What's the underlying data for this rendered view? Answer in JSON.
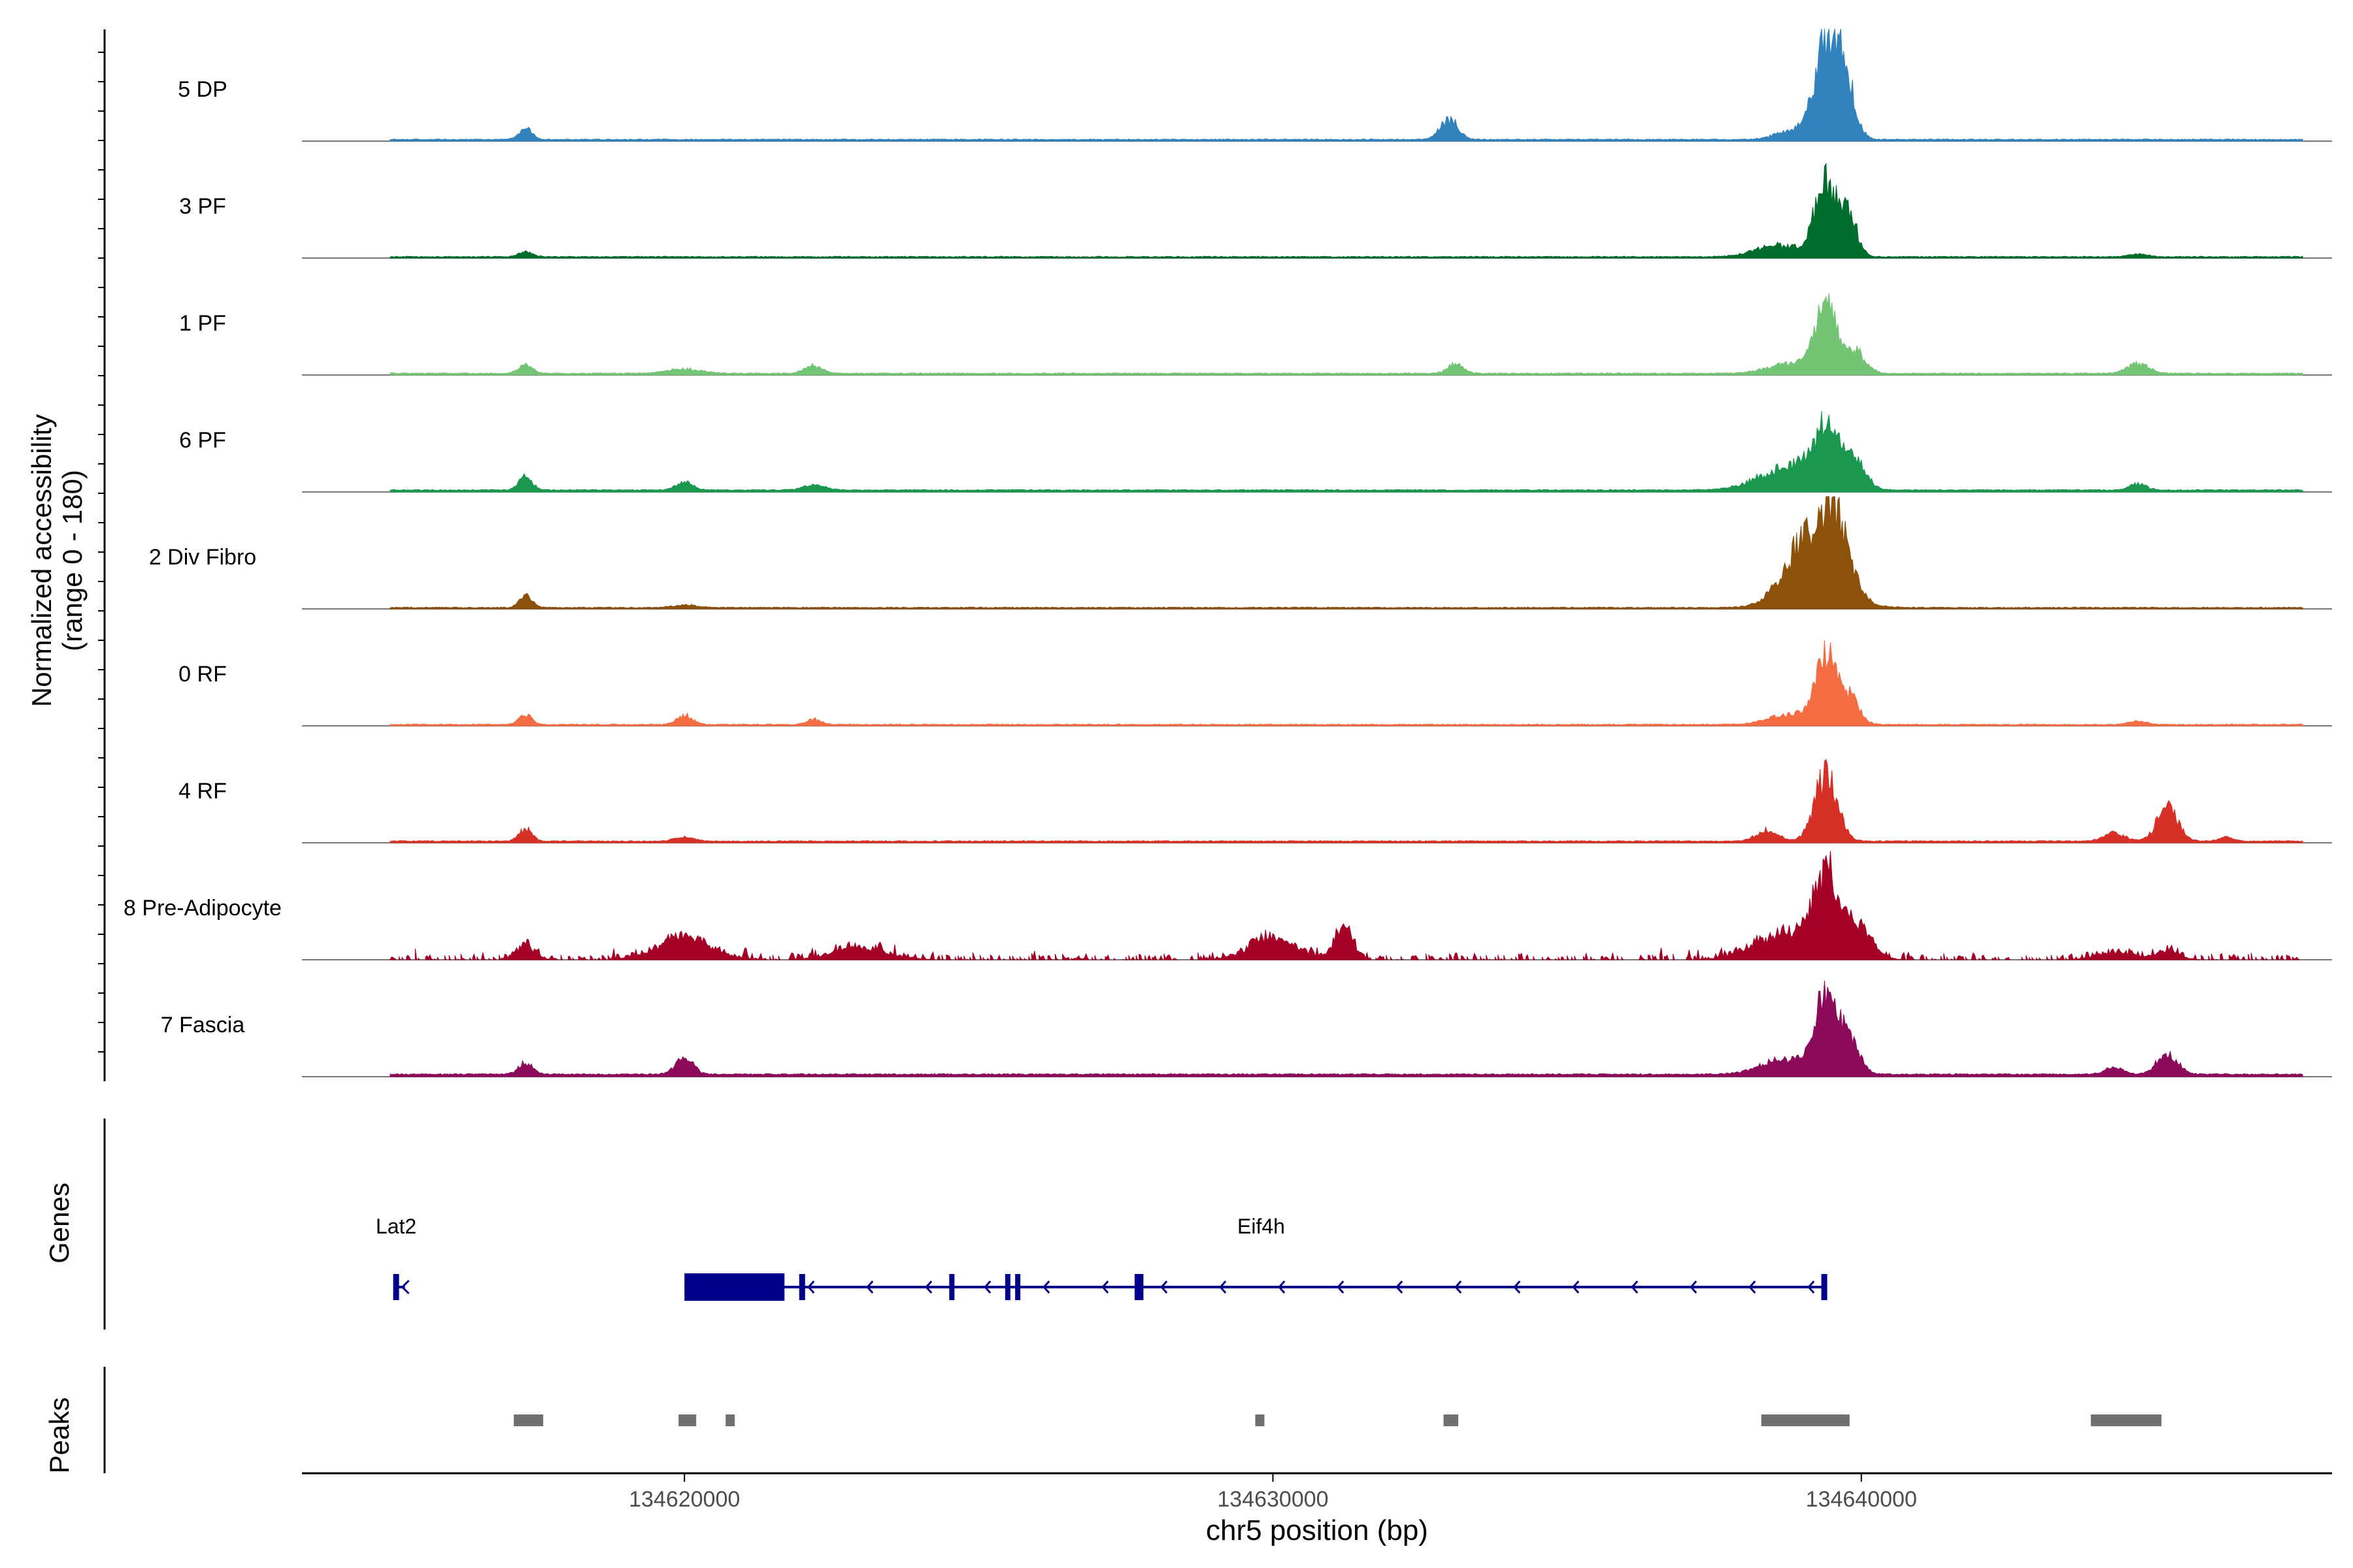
{
  "chart_data": {
    "type": "area",
    "title": "",
    "xlabel": "chr5 position (bp)",
    "ylabel": [
      "Normalized accessibility",
      "(range 0 - 180)"
    ],
    "chromosome": "chr5",
    "xlim": [
      134613500,
      134648000
    ],
    "ylim": [
      0,
      180
    ],
    "x_ticks": [
      {
        "value": 134620000,
        "label": "134620000"
      },
      {
        "value": 134630000,
        "label": "134630000"
      },
      {
        "value": 134640000,
        "label": "134640000"
      }
    ],
    "coverage_range": [
      134615000,
      134647500
    ],
    "tracks": [
      {
        "name": "5 DP",
        "color": "#3182bd",
        "bg": 2,
        "noise": 1.5,
        "density": 1.0,
        "peaks": [
          [
            134617300,
            20,
            110
          ],
          [
            134633000,
            38,
            150
          ],
          [
            134638800,
            16,
            260
          ],
          [
            134639400,
            170,
            200
          ],
          [
            134639700,
            120,
            170
          ]
        ]
      },
      {
        "name": "3 PF",
        "color": "#006d2c",
        "bg": 1.5,
        "noise": 1.5,
        "density": 1.0,
        "peaks": [
          [
            134617300,
            9,
            120
          ],
          [
            134638600,
            22,
            380
          ],
          [
            134639400,
            150,
            180
          ],
          [
            134639800,
            70,
            140
          ],
          [
            134644700,
            5,
            160
          ]
        ]
      },
      {
        "name": "1 PF",
        "color": "#74c476",
        "bg": 2,
        "noise": 1.5,
        "density": 1.0,
        "peaks": [
          [
            134617300,
            16,
            120
          ],
          [
            134620000,
            8,
            300
          ],
          [
            134622200,
            14,
            150
          ],
          [
            134633100,
            18,
            130
          ],
          [
            134638800,
            18,
            380
          ],
          [
            134639400,
            120,
            200
          ],
          [
            134639900,
            40,
            170
          ],
          [
            134644700,
            20,
            180
          ]
        ]
      },
      {
        "name": "6 PF",
        "color": "#1a9850",
        "bg": 2.5,
        "noise": 1.5,
        "density": 1.0,
        "peaks": [
          [
            134617300,
            26,
            110
          ],
          [
            134620000,
            16,
            130
          ],
          [
            134622200,
            9,
            180
          ],
          [
            134638800,
            45,
            500
          ],
          [
            134639400,
            100,
            220
          ],
          [
            134639900,
            50,
            180
          ],
          [
            134644700,
            12,
            140
          ]
        ]
      },
      {
        "name": "2 Div Fibro",
        "color": "#8c510a",
        "bg": 1.5,
        "noise": 1.5,
        "density": 1.0,
        "peaks": [
          [
            134617300,
            22,
            110
          ],
          [
            134620000,
            5,
            200
          ],
          [
            134639200,
            150,
            420
          ],
          [
            134639600,
            90,
            200
          ]
        ]
      },
      {
        "name": "0 RF",
        "color": "#f46d43",
        "bg": 1.5,
        "noise": 1.5,
        "density": 1.0,
        "peaks": [
          [
            134617300,
            18,
            110
          ],
          [
            134620000,
            18,
            130
          ],
          [
            134622200,
            10,
            120
          ],
          [
            134638800,
            20,
            350
          ],
          [
            134639400,
            130,
            170
          ],
          [
            134639800,
            50,
            160
          ],
          [
            134644700,
            6,
            150
          ]
        ]
      },
      {
        "name": "4 RF",
        "color": "#d73027",
        "bg": 2,
        "noise": 1.5,
        "density": 1.0,
        "peaks": [
          [
            134617300,
            22,
            110
          ],
          [
            134620000,
            8,
            160
          ],
          [
            134638400,
            22,
            180
          ],
          [
            134639400,
            125,
            190
          ],
          [
            134644300,
            15,
            180
          ],
          [
            134645200,
            60,
            180
          ],
          [
            134646200,
            8,
            120
          ]
        ]
      },
      {
        "name": "8 Pre-Adipocyte",
        "color": "#a50026",
        "bg": 0,
        "noise": 8,
        "density": 0.45,
        "peaks": [
          [
            134617300,
            28,
            150
          ],
          [
            134620000,
            40,
            450
          ],
          [
            134623000,
            22,
            450
          ],
          [
            134630000,
            40,
            400
          ],
          [
            134631200,
            65,
            150
          ],
          [
            134638700,
            50,
            500
          ],
          [
            134639400,
            140,
            220
          ],
          [
            134639900,
            60,
            250
          ],
          [
            134644300,
            15,
            300
          ],
          [
            134645200,
            15,
            200
          ]
        ]
      },
      {
        "name": "7 Fascia",
        "color": "#8c0a5a",
        "bg": 3,
        "noise": 2,
        "density": 1.0,
        "peaks": [
          [
            134617300,
            22,
            120
          ],
          [
            134620000,
            30,
            150
          ],
          [
            134638700,
            28,
            400
          ],
          [
            134639400,
            140,
            190
          ],
          [
            134639800,
            60,
            170
          ],
          [
            134644300,
            14,
            150
          ],
          [
            134645200,
            40,
            170
          ]
        ]
      }
    ],
    "genes_label": "Genes",
    "genes": [
      {
        "name": "Lat2",
        "start": 134615050,
        "end": 134615250,
        "strand": "-",
        "label_pos": 134615100,
        "exons": [
          [
            134615050,
            134615150
          ]
        ]
      },
      {
        "name": "Eif4h",
        "start": 134620000,
        "end": 134639400,
        "strand": "-",
        "label_pos": 134629800,
        "exons": [
          [
            134620000,
            134621700
          ],
          [
            134621950,
            134622050
          ],
          [
            134624500,
            134624530
          ],
          [
            134625450,
            134625500
          ],
          [
            134625620,
            134625670
          ],
          [
            134627650,
            134627800
          ],
          [
            134639320,
            134639420
          ]
        ],
        "utr_exons": [
          [
            134620000,
            134621700
          ]
        ]
      }
    ],
    "peaks_label": "Peaks",
    "peaks": [
      [
        134617100,
        134617600
      ],
      [
        134619900,
        134620200
      ],
      [
        134620700,
        134620850
      ],
      [
        134629700,
        134629850
      ],
      [
        134632900,
        134633150
      ],
      [
        134638300,
        134639800
      ],
      [
        134643900,
        134645100
      ]
    ]
  }
}
